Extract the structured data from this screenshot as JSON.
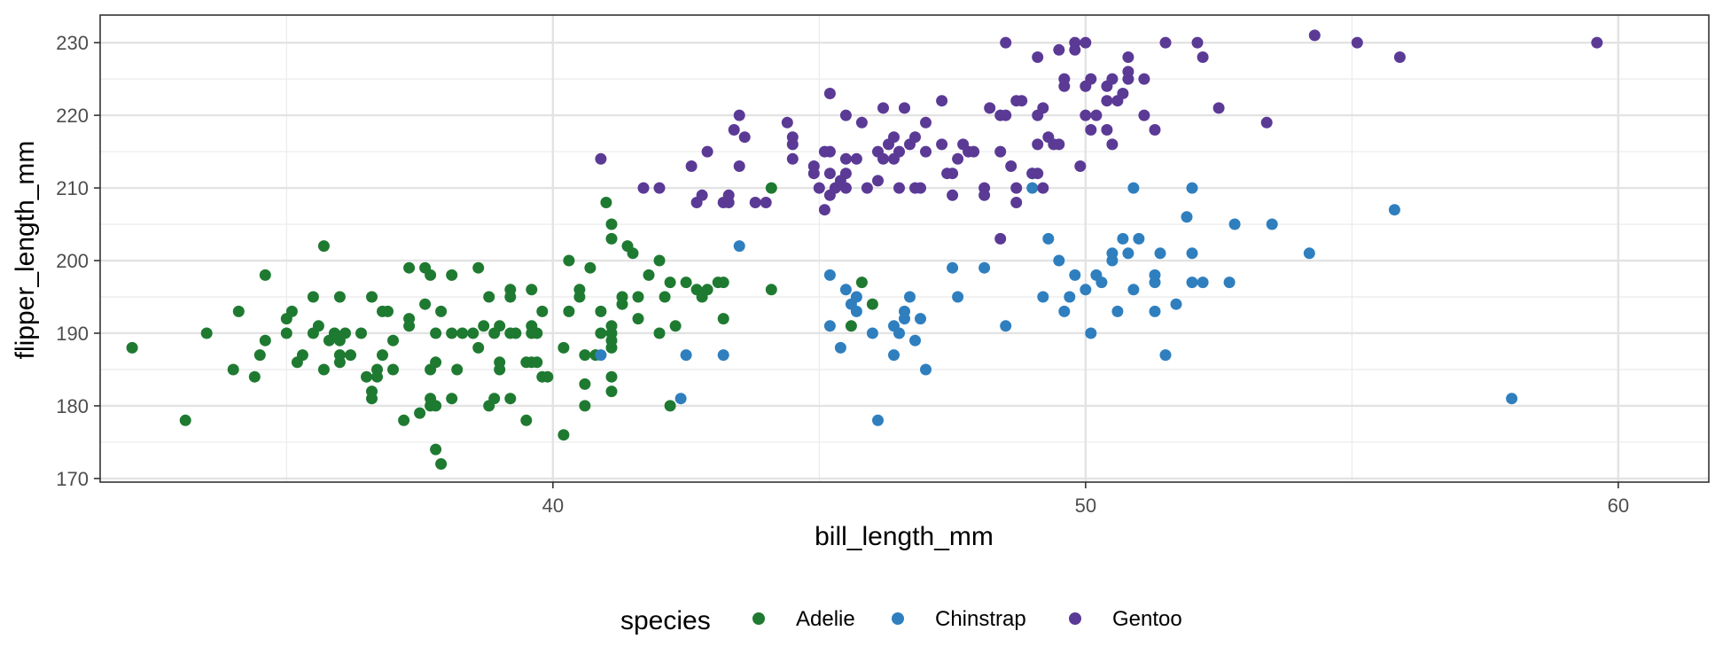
{
  "chart_data": {
    "type": "scatter",
    "title": "",
    "xlabel": "bill_length_mm",
    "ylabel": "flipper_length_mm",
    "xlim": [
      31.5,
      61.7
    ],
    "ylim": [
      169.5,
      233.8
    ],
    "xticks": [
      40,
      50,
      60
    ],
    "yticks": [
      170,
      180,
      190,
      200,
      210,
      220,
      230
    ],
    "grid": true,
    "legend_position": "bottom",
    "legend_title": "species",
    "series": [
      {
        "name": "Adelie",
        "color": "#1f7a31",
        "points": [
          [
            32.1,
            188
          ],
          [
            33.1,
            178
          ],
          [
            33.5,
            190
          ],
          [
            34.0,
            185
          ],
          [
            34.1,
            193
          ],
          [
            34.4,
            184
          ],
          [
            34.5,
            187
          ],
          [
            34.6,
            189
          ],
          [
            34.6,
            198
          ],
          [
            35.0,
            190
          ],
          [
            35.0,
            192
          ],
          [
            35.1,
            193
          ],
          [
            35.2,
            186
          ],
          [
            35.3,
            187
          ],
          [
            35.5,
            195
          ],
          [
            35.5,
            190
          ],
          [
            35.6,
            191
          ],
          [
            35.7,
            202
          ],
          [
            35.7,
            185
          ],
          [
            35.8,
            189
          ],
          [
            35.9,
            190
          ],
          [
            36.0,
            186
          ],
          [
            36.0,
            187
          ],
          [
            36.0,
            189
          ],
          [
            36.0,
            195
          ],
          [
            36.1,
            190
          ],
          [
            36.2,
            187
          ],
          [
            36.4,
            190
          ],
          [
            36.5,
            184
          ],
          [
            36.6,
            181
          ],
          [
            36.6,
            182
          ],
          [
            36.6,
            195
          ],
          [
            36.7,
            184
          ],
          [
            36.7,
            185
          ],
          [
            36.8,
            187
          ],
          [
            36.8,
            193
          ],
          [
            36.9,
            193
          ],
          [
            37.0,
            185
          ],
          [
            37.0,
            189
          ],
          [
            37.2,
            178
          ],
          [
            37.3,
            191
          ],
          [
            37.3,
            192
          ],
          [
            37.3,
            199
          ],
          [
            37.5,
            179
          ],
          [
            37.6,
            194
          ],
          [
            37.6,
            199
          ],
          [
            37.7,
            180
          ],
          [
            37.7,
            181
          ],
          [
            37.7,
            185
          ],
          [
            37.7,
            198
          ],
          [
            37.8,
            174
          ],
          [
            37.8,
            180
          ],
          [
            37.8,
            186
          ],
          [
            37.8,
            190
          ],
          [
            37.9,
            172
          ],
          [
            37.9,
            193
          ],
          [
            38.1,
            181
          ],
          [
            38.1,
            190
          ],
          [
            38.1,
            198
          ],
          [
            38.2,
            185
          ],
          [
            38.3,
            190
          ],
          [
            38.5,
            190
          ],
          [
            38.6,
            188
          ],
          [
            38.6,
            199
          ],
          [
            38.7,
            191
          ],
          [
            38.8,
            180
          ],
          [
            38.8,
            195
          ],
          [
            38.9,
            181
          ],
          [
            38.9,
            190
          ],
          [
            39.0,
            191
          ],
          [
            39.0,
            185
          ],
          [
            39.0,
            186
          ],
          [
            39.2,
            181
          ],
          [
            39.2,
            190
          ],
          [
            39.2,
            195
          ],
          [
            39.2,
            196
          ],
          [
            39.3,
            190
          ],
          [
            39.5,
            178
          ],
          [
            39.5,
            186
          ],
          [
            39.6,
            186
          ],
          [
            39.6,
            190
          ],
          [
            39.6,
            191
          ],
          [
            39.6,
            196
          ],
          [
            39.7,
            186
          ],
          [
            39.7,
            190
          ],
          [
            39.8,
            184
          ],
          [
            39.8,
            193
          ],
          [
            39.9,
            184
          ],
          [
            40.2,
            188
          ],
          [
            40.2,
            176
          ],
          [
            40.3,
            200
          ],
          [
            40.3,
            193
          ],
          [
            40.5,
            195
          ],
          [
            40.5,
            196
          ],
          [
            40.6,
            180
          ],
          [
            40.6,
            183
          ],
          [
            40.6,
            187
          ],
          [
            40.7,
            199
          ],
          [
            40.8,
            187
          ],
          [
            40.9,
            190
          ],
          [
            40.9,
            193
          ],
          [
            41.1,
            184
          ],
          [
            41.1,
            190
          ],
          [
            41.1,
            182
          ],
          [
            41.1,
            188
          ],
          [
            41.1,
            189
          ],
          [
            41.1,
            191
          ],
          [
            41.0,
            208
          ],
          [
            41.3,
            195
          ],
          [
            41.3,
            194
          ],
          [
            41.5,
            201
          ],
          [
            41.4,
            202
          ],
          [
            41.6,
            195
          ],
          [
            41.6,
            192
          ],
          [
            41.8,
            198
          ],
          [
            42.0,
            190
          ],
          [
            42.0,
            200
          ],
          [
            42.1,
            195
          ],
          [
            42.2,
            180
          ],
          [
            42.2,
            197
          ],
          [
            42.3,
            191
          ],
          [
            42.5,
            197
          ],
          [
            42.7,
            196
          ],
          [
            42.8,
            195
          ],
          [
            42.9,
            196
          ],
          [
            43.1,
            197
          ],
          [
            43.2,
            197
          ],
          [
            43.2,
            192
          ],
          [
            44.1,
            196
          ],
          [
            44.1,
            210
          ],
          [
            45.6,
            191
          ],
          [
            45.8,
            197
          ],
          [
            46.0,
            194
          ],
          [
            41.1,
            205
          ],
          [
            41.1,
            203
          ]
        ]
      },
      {
        "name": "Chinstrap",
        "color": "#2f7fbf",
        "points": [
          [
            40.9,
            187
          ],
          [
            42.4,
            181
          ],
          [
            42.5,
            187
          ],
          [
            43.2,
            187
          ],
          [
            43.5,
            202
          ],
          [
            45.2,
            191
          ],
          [
            45.2,
            198
          ],
          [
            45.4,
            188
          ],
          [
            45.5,
            196
          ],
          [
            45.6,
            194
          ],
          [
            45.7,
            195
          ],
          [
            45.7,
            193
          ],
          [
            46.0,
            190
          ],
          [
            46.1,
            178
          ],
          [
            46.4,
            187
          ],
          [
            46.4,
            191
          ],
          [
            46.5,
            190
          ],
          [
            46.6,
            193
          ],
          [
            46.6,
            192
          ],
          [
            46.7,
            195
          ],
          [
            46.8,
            189
          ],
          [
            46.9,
            192
          ],
          [
            47.0,
            185
          ],
          [
            47.5,
            199
          ],
          [
            47.6,
            195
          ],
          [
            48.1,
            199
          ],
          [
            48.5,
            191
          ],
          [
            49.0,
            210
          ],
          [
            49.0,
            212
          ],
          [
            49.2,
            195
          ],
          [
            49.3,
            203
          ],
          [
            49.5,
            200
          ],
          [
            49.6,
            193
          ],
          [
            49.7,
            195
          ],
          [
            49.8,
            198
          ],
          [
            50.0,
            196
          ],
          [
            50.1,
            190
          ],
          [
            50.2,
            198
          ],
          [
            50.3,
            197
          ],
          [
            50.5,
            200
          ],
          [
            50.5,
            201
          ],
          [
            50.6,
            193
          ],
          [
            50.7,
            203
          ],
          [
            50.8,
            201
          ],
          [
            50.9,
            196
          ],
          [
            51.0,
            203
          ],
          [
            51.3,
            197
          ],
          [
            51.3,
            198
          ],
          [
            51.3,
            193
          ],
          [
            51.4,
            201
          ],
          [
            51.5,
            187
          ],
          [
            51.7,
            194
          ],
          [
            51.9,
            206
          ],
          [
            52.0,
            197
          ],
          [
            52.0,
            201
          ],
          [
            52.0,
            210
          ],
          [
            52.2,
            197
          ],
          [
            52.7,
            197
          ],
          [
            52.8,
            205
          ],
          [
            53.5,
            205
          ],
          [
            54.2,
            201
          ],
          [
            55.8,
            207
          ],
          [
            58.0,
            181
          ],
          [
            50.9,
            210
          ]
        ]
      },
      {
        "name": "Gentoo",
        "color": "#5b3a96",
        "points": [
          [
            40.9,
            214
          ],
          [
            41.7,
            210
          ],
          [
            42.0,
            210
          ],
          [
            42.6,
            213
          ],
          [
            42.7,
            208
          ],
          [
            42.8,
            209
          ],
          [
            42.9,
            215
          ],
          [
            43.2,
            208
          ],
          [
            43.3,
            208
          ],
          [
            43.3,
            209
          ],
          [
            43.4,
            218
          ],
          [
            43.5,
            213
          ],
          [
            43.5,
            220
          ],
          [
            43.6,
            217
          ],
          [
            43.8,
            208
          ],
          [
            44.0,
            208
          ],
          [
            44.4,
            219
          ],
          [
            44.5,
            216
          ],
          [
            44.5,
            217
          ],
          [
            44.5,
            214
          ],
          [
            44.9,
            213
          ],
          [
            44.9,
            212
          ],
          [
            45.0,
            210
          ],
          [
            45.1,
            207
          ],
          [
            45.1,
            215
          ],
          [
            45.2,
            209
          ],
          [
            45.2,
            212
          ],
          [
            45.2,
            215
          ],
          [
            45.2,
            223
          ],
          [
            45.3,
            210
          ],
          [
            45.4,
            211
          ],
          [
            45.5,
            210
          ],
          [
            45.5,
            212
          ],
          [
            45.5,
            214
          ],
          [
            45.5,
            220
          ],
          [
            45.7,
            214
          ],
          [
            45.8,
            219
          ],
          [
            45.9,
            210
          ],
          [
            46.1,
            211
          ],
          [
            46.1,
            215
          ],
          [
            46.2,
            214
          ],
          [
            46.2,
            221
          ],
          [
            46.3,
            216
          ],
          [
            46.4,
            217
          ],
          [
            46.4,
            214
          ],
          [
            46.5,
            210
          ],
          [
            46.5,
            215
          ],
          [
            46.6,
            221
          ],
          [
            46.7,
            216
          ],
          [
            46.8,
            210
          ],
          [
            46.8,
            217
          ],
          [
            46.9,
            210
          ],
          [
            47.0,
            215
          ],
          [
            47.0,
            219
          ],
          [
            47.3,
            216
          ],
          [
            47.3,
            222
          ],
          [
            47.4,
            212
          ],
          [
            47.5,
            209
          ],
          [
            47.5,
            212
          ],
          [
            47.6,
            214
          ],
          [
            47.7,
            216
          ],
          [
            47.8,
            215
          ],
          [
            47.9,
            215
          ],
          [
            48.1,
            210
          ],
          [
            48.1,
            209
          ],
          [
            48.2,
            221
          ],
          [
            48.4,
            203
          ],
          [
            48.4,
            215
          ],
          [
            48.4,
            220
          ],
          [
            48.5,
            220
          ],
          [
            48.6,
            213
          ],
          [
            48.7,
            208
          ],
          [
            48.7,
            210
          ],
          [
            48.7,
            222
          ],
          [
            48.8,
            222
          ],
          [
            49.0,
            212
          ],
          [
            49.1,
            216
          ],
          [
            49.1,
            220
          ],
          [
            49.1,
            212
          ],
          [
            49.1,
            228
          ],
          [
            49.2,
            221
          ],
          [
            49.3,
            217
          ],
          [
            49.4,
            216
          ],
          [
            49.5,
            216
          ],
          [
            49.5,
            229
          ],
          [
            49.6,
            224
          ],
          [
            49.6,
            225
          ],
          [
            49.8,
            229
          ],
          [
            49.8,
            230
          ],
          [
            49.9,
            213
          ],
          [
            50.0,
            220
          ],
          [
            50.0,
            224
          ],
          [
            50.0,
            230
          ],
          [
            50.1,
            218
          ],
          [
            50.1,
            225
          ],
          [
            50.2,
            220
          ],
          [
            50.4,
            218
          ],
          [
            50.4,
            222
          ],
          [
            50.4,
            224
          ],
          [
            50.5,
            225
          ],
          [
            50.5,
            216
          ],
          [
            50.6,
            222
          ],
          [
            50.7,
            223
          ],
          [
            50.8,
            226
          ],
          [
            50.8,
            228
          ],
          [
            50.8,
            225
          ],
          [
            51.1,
            220
          ],
          [
            51.1,
            225
          ],
          [
            51.3,
            218
          ],
          [
            51.5,
            230
          ],
          [
            52.1,
            230
          ],
          [
            52.2,
            228
          ],
          [
            52.5,
            221
          ],
          [
            53.4,
            219
          ],
          [
            54.3,
            231
          ],
          [
            55.1,
            230
          ],
          [
            55.9,
            228
          ],
          [
            59.6,
            230
          ],
          [
            48.5,
            230
          ],
          [
            49.2,
            210
          ]
        ]
      }
    ]
  }
}
